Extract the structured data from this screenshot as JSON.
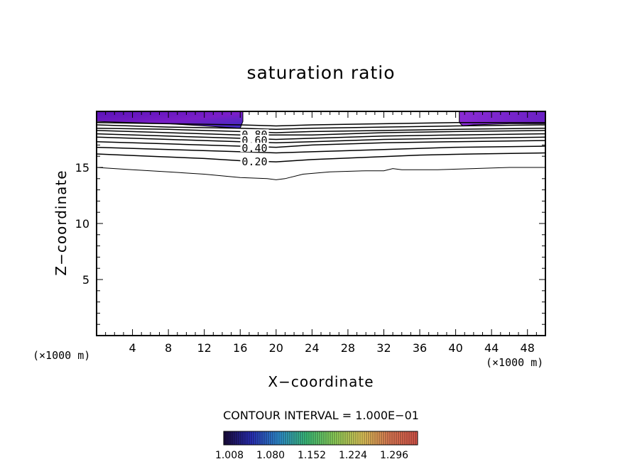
{
  "chart_data": {
    "type": "contour",
    "title": "saturation ratio",
    "xlabel": "X−coordinate",
    "ylabel": "Z−coordinate",
    "x_unit_left": "(×1000 m)",
    "x_unit_right": "(×1000 m)",
    "xlim": [
      0,
      50
    ],
    "ylim": [
      0,
      20
    ],
    "x_ticks": [
      4,
      8,
      12,
      16,
      20,
      24,
      28,
      32,
      36,
      40,
      44,
      48
    ],
    "y_ticks": [
      5,
      10,
      15
    ],
    "contour_interval_text": "CONTOUR INTERVAL = 1.000E−01",
    "contour_labels": [
      {
        "text": "0.80",
        "x": 17.6,
        "y": 17.9
      },
      {
        "text": "0.60",
        "x": 17.6,
        "y": 17.4
      },
      {
        "text": "0.40",
        "x": 17.6,
        "y": 16.7
      },
      {
        "text": "0.20",
        "x": 17.6,
        "y": 15.5
      }
    ],
    "contours": [
      {
        "level": 0.1,
        "points": [
          [
            0,
            15.0
          ],
          [
            4,
            14.8
          ],
          [
            8,
            14.6
          ],
          [
            12,
            14.4
          ],
          [
            16,
            14.1
          ],
          [
            19,
            14.0
          ],
          [
            20,
            13.9
          ],
          [
            21,
            14.0
          ],
          [
            23,
            14.4
          ],
          [
            26,
            14.6
          ],
          [
            30,
            14.7
          ],
          [
            32,
            14.7
          ],
          [
            33,
            14.9
          ],
          [
            34,
            14.8
          ],
          [
            38,
            14.8
          ],
          [
            42,
            14.9
          ],
          [
            46,
            15.0
          ],
          [
            50,
            15.0
          ]
        ]
      },
      {
        "level": 0.2,
        "points": [
          [
            0,
            16.2
          ],
          [
            6,
            16.0
          ],
          [
            12,
            15.8
          ],
          [
            16,
            15.6
          ],
          [
            20,
            15.5
          ],
          [
            24,
            15.7
          ],
          [
            30,
            15.9
          ],
          [
            36,
            16.1
          ],
          [
            42,
            16.2
          ],
          [
            50,
            16.3
          ]
        ]
      },
      {
        "level": 0.3,
        "points": [
          [
            0,
            16.8
          ],
          [
            8,
            16.6
          ],
          [
            16,
            16.4
          ],
          [
            20,
            16.3
          ],
          [
            24,
            16.4
          ],
          [
            32,
            16.6
          ],
          [
            40,
            16.8
          ],
          [
            50,
            16.9
          ]
        ]
      },
      {
        "level": 0.4,
        "points": [
          [
            0,
            17.3
          ],
          [
            8,
            17.1
          ],
          [
            16,
            16.9
          ],
          [
            20,
            16.8
          ],
          [
            24,
            17.0
          ],
          [
            32,
            17.2
          ],
          [
            40,
            17.3
          ],
          [
            50,
            17.4
          ]
        ]
      },
      {
        "level": 0.5,
        "points": [
          [
            0,
            17.7
          ],
          [
            8,
            17.5
          ],
          [
            16,
            17.3
          ],
          [
            20,
            17.2
          ],
          [
            24,
            17.3
          ],
          [
            32,
            17.5
          ],
          [
            40,
            17.6
          ],
          [
            50,
            17.7
          ]
        ]
      },
      {
        "level": 0.6,
        "points": [
          [
            0,
            18.0
          ],
          [
            8,
            17.8
          ],
          [
            16,
            17.6
          ],
          [
            20,
            17.5
          ],
          [
            24,
            17.6
          ],
          [
            32,
            17.8
          ],
          [
            40,
            17.9
          ],
          [
            50,
            18.0
          ]
        ]
      },
      {
        "level": 0.7,
        "points": [
          [
            0,
            18.3
          ],
          [
            8,
            18.1
          ],
          [
            16,
            17.9
          ],
          [
            20,
            17.9
          ],
          [
            24,
            17.9
          ],
          [
            32,
            18.1
          ],
          [
            40,
            18.2
          ],
          [
            50,
            18.3
          ]
        ]
      },
      {
        "level": 0.8,
        "points": [
          [
            0,
            18.5
          ],
          [
            8,
            18.4
          ],
          [
            16,
            18.2
          ],
          [
            20,
            18.1
          ],
          [
            24,
            18.2
          ],
          [
            32,
            18.3
          ],
          [
            40,
            18.4
          ],
          [
            50,
            18.5
          ]
        ]
      },
      {
        "level": 0.9,
        "points": [
          [
            0,
            18.8
          ],
          [
            8,
            18.6
          ],
          [
            16,
            18.5
          ],
          [
            20,
            18.4
          ],
          [
            24,
            18.5
          ],
          [
            32,
            18.6
          ],
          [
            40,
            18.7
          ],
          [
            50,
            18.8
          ]
        ]
      },
      {
        "level": 1.0,
        "points": [
          [
            0,
            19.0
          ],
          [
            8,
            18.9
          ],
          [
            16,
            18.8
          ],
          [
            20,
            18.7
          ],
          [
            24,
            18.8
          ],
          [
            32,
            18.9
          ],
          [
            40,
            19.0
          ],
          [
            50,
            19.0
          ]
        ]
      }
    ],
    "filled_regions": [
      {
        "name": "supersaturated-left",
        "polygon": [
          [
            0,
            20
          ],
          [
            16.3,
            20
          ],
          [
            16.3,
            19.1
          ],
          [
            16.0,
            18.5
          ],
          [
            12,
            18.7
          ],
          [
            8,
            18.9
          ],
          [
            4,
            19.0
          ],
          [
            0,
            19.1
          ]
        ]
      },
      {
        "name": "supersaturated-right",
        "polygon": [
          [
            40.4,
            20
          ],
          [
            50,
            20
          ],
          [
            50,
            18.9
          ],
          [
            46,
            18.9
          ],
          [
            42,
            18.8
          ],
          [
            40.8,
            18.7
          ],
          [
            40.4,
            19.0
          ]
        ]
      }
    ],
    "colorbar": {
      "ticks": [
        "1.008",
        "1.080",
        "1.152",
        "1.224",
        "1.296"
      ],
      "colors": [
        "#1a0a3a",
        "#2a2fb8",
        "#2f8fd0",
        "#3dbf7a",
        "#8fd25a",
        "#e0c85a",
        "#e07a55",
        "#d8554a"
      ]
    },
    "colors": {
      "low": "#4b0fae",
      "mid": "#7a1ec8",
      "high": "#9b2bd0"
    }
  }
}
